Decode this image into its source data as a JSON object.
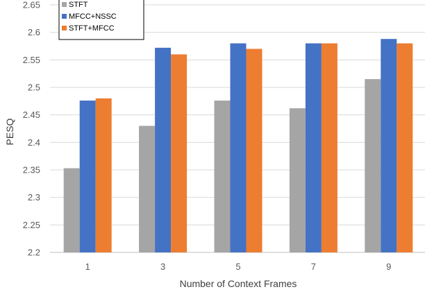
{
  "chart_data": {
    "type": "bar",
    "title": "",
    "xlabel": "Number of Context Frames",
    "ylabel": "PESQ",
    "categories": [
      "1",
      "3",
      "5",
      "7",
      "9"
    ],
    "ylim": [
      2.2,
      2.65
    ],
    "yticks": [
      "2.2",
      "2.25",
      "2.3",
      "2.35",
      "2.4",
      "2.45",
      "2.5",
      "2.55",
      "2.6",
      "2.65"
    ],
    "grid": "horizontal",
    "legend_position": "top-left",
    "series": [
      {
        "name": "STFT",
        "color": "#a5a5a5",
        "values": [
          2.353,
          2.43,
          2.476,
          2.462,
          2.515
        ]
      },
      {
        "name": "MFCC+NSSC",
        "color": "#4472c4",
        "values": [
          2.476,
          2.572,
          2.58,
          2.58,
          2.588
        ]
      },
      {
        "name": "STFT+MFCC",
        "color": "#ed7d31",
        "values": [
          2.48,
          2.56,
          2.57,
          2.58,
          2.58
        ]
      }
    ]
  }
}
